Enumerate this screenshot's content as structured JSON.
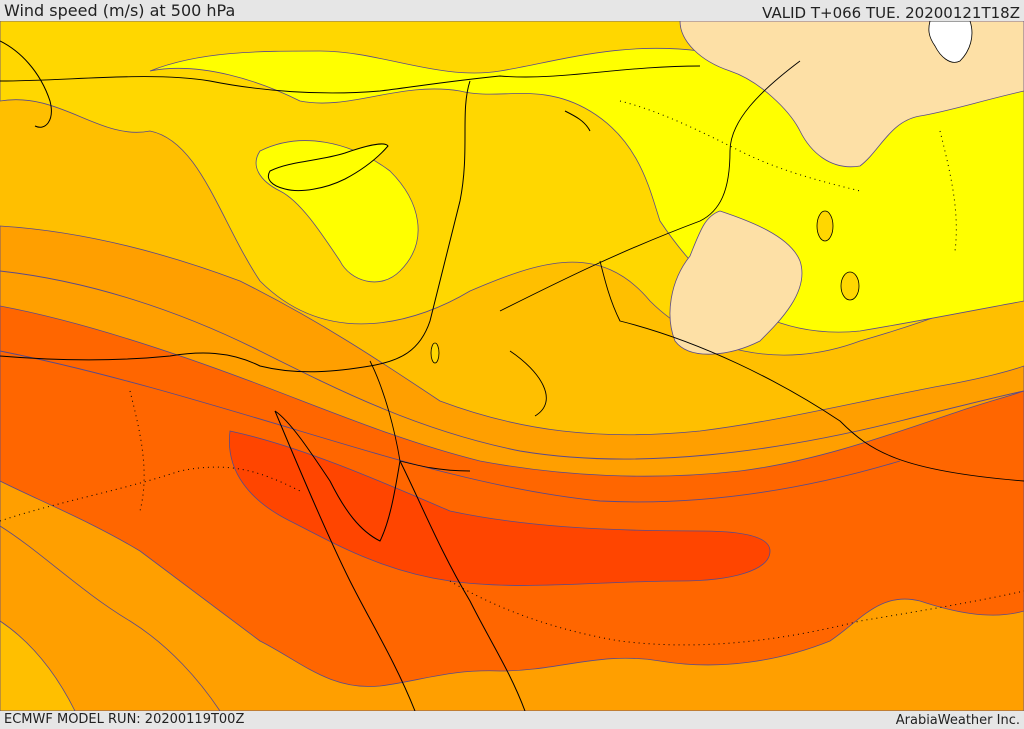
{
  "header": {
    "title": "Wind speed (m/s) at 500 hPa",
    "valid": "VALID T+066 TUE. 20200121T18Z"
  },
  "footer": {
    "model_run": "ECMWF MODEL RUN: 20200119T00Z",
    "credit": "ArabiaWeather Inc."
  },
  "colors": {
    "band_lightest": "#fde0a6",
    "band_yellow": "#ffff00",
    "band_gold": "#ffd700",
    "band_amber": "#ffbf00",
    "band_orange": "#ff9f00",
    "band_dark_orange": "#ff6600",
    "band_red_orange": "#ff4500",
    "band_white": "#ffffff",
    "contour_line": "#5a4a8a",
    "coast_line": "#000000"
  }
}
